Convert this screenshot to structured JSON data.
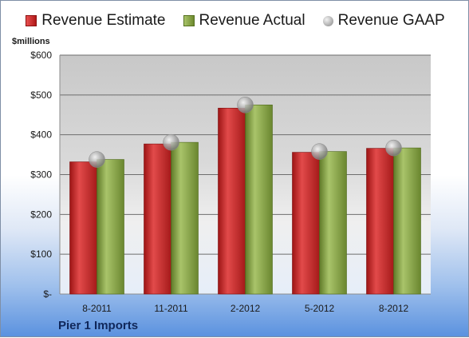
{
  "chart_data": {
    "type": "bar",
    "categories": [
      "8-2011",
      "11-2011",
      "2-2012",
      "5-2012",
      "8-2012"
    ],
    "series": [
      {
        "name": "Revenue Estimate",
        "type": "bar",
        "color": "#c92a2a",
        "values": [
          332,
          377,
          467,
          356,
          366
        ]
      },
      {
        "name": "Revenue Actual",
        "type": "bar",
        "color": "#8aa74a",
        "values": [
          338,
          381,
          475,
          358,
          367
        ]
      },
      {
        "name": "Revenue GAAP",
        "type": "scatter",
        "color": "#b0b0b0",
        "values": [
          338,
          381,
          475,
          358,
          367
        ]
      }
    ],
    "ylabel": "$millions",
    "ylim": [
      0,
      600
    ],
    "yticks": [
      {
        "value": 0,
        "label": "$-"
      },
      {
        "value": 100,
        "label": "$100"
      },
      {
        "value": 200,
        "label": "$200"
      },
      {
        "value": 300,
        "label": "$300"
      },
      {
        "value": 400,
        "label": "$400"
      },
      {
        "value": 500,
        "label": "$500"
      },
      {
        "value": 600,
        "label": "$600"
      }
    ],
    "grid": true,
    "legend": "top"
  },
  "footer": "Pier 1 Imports"
}
